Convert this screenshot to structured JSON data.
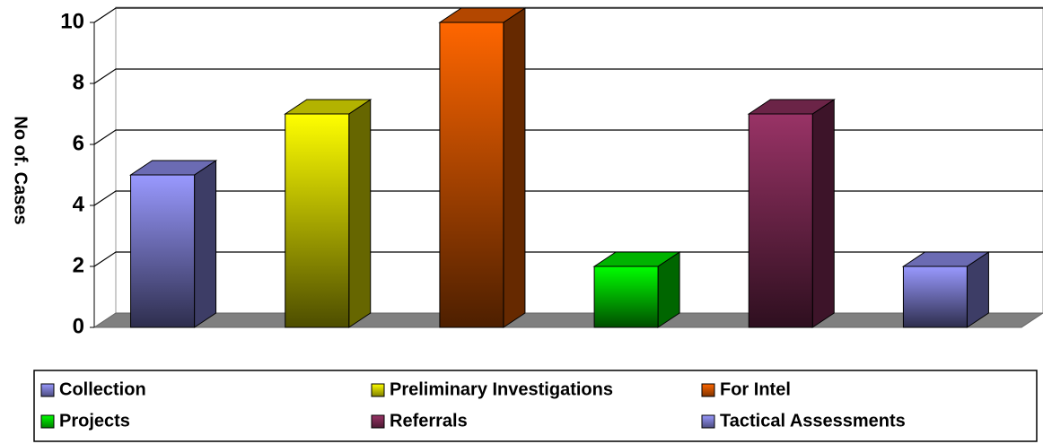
{
  "chart_data": {
    "type": "bar3d",
    "y_label": "No of. Cases",
    "categories": [
      "Collection",
      "Preliminary Investigations",
      "For Intel",
      "Projects",
      "Referrals",
      "Tactical Assessments"
    ],
    "values": [
      5,
      7,
      10,
      2,
      7,
      2
    ],
    "colors": [
      "#9999ff",
      "#ffff00",
      "#ff6600",
      "#00ff00",
      "#993366",
      "#9999ff"
    ],
    "ylim": [
      0,
      10
    ],
    "yticks": [
      0,
      2,
      4,
      6,
      8,
      10
    ],
    "grid": true,
    "legend": "bottom"
  }
}
